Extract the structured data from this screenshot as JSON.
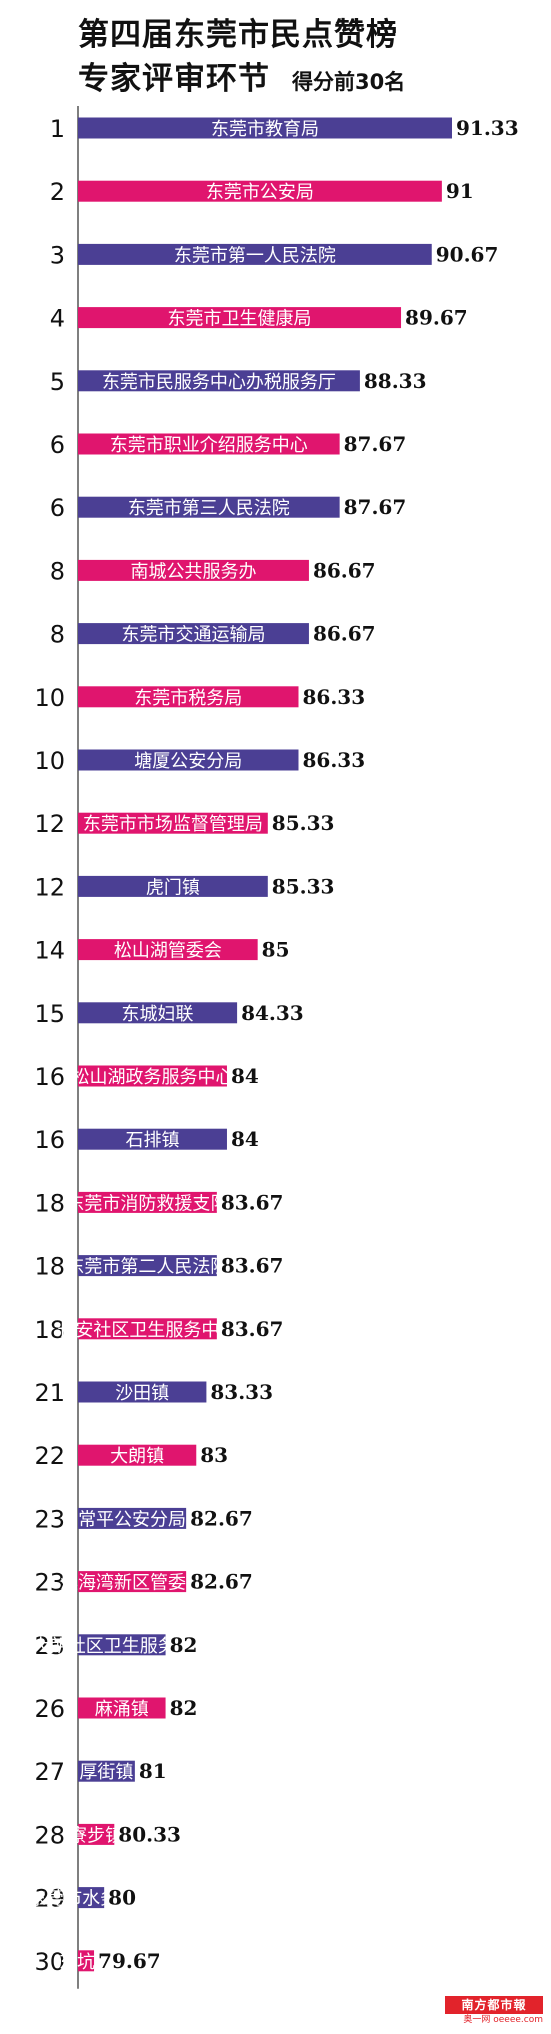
{
  "title": "第四届东莞市民点赞榜",
  "title_line2": "专家评审环节",
  "subtitle": "得分前30名",
  "colors": {
    "odd_bar": "#4b3f94",
    "even_bar": "#e0156e",
    "label_text": "#ffffff",
    "score_text": "#111111",
    "axis": "#555555"
  },
  "chart_data": {
    "type": "bar",
    "orientation": "horizontal",
    "ylim": [
      0,
      100
    ],
    "grid": false,
    "legend": "none",
    "ranks": [
      "1",
      "2",
      "3",
      "4",
      "5",
      "6",
      "6",
      "8",
      "8",
      "10",
      "10",
      "12",
      "12",
      "14",
      "15",
      "16",
      "16",
      "18",
      "18",
      "18",
      "21",
      "22",
      "23",
      "23",
      "25",
      "26",
      "27",
      "28",
      "29",
      "30"
    ],
    "categories": [
      "东莞市教育局",
      "东莞市公安局",
      "东莞市第一人民法院",
      "东莞市卫生健康局",
      "东莞市民服务中心办税服务厅",
      "东莞市职业介绍服务中心",
      "东莞市第三人民法院",
      "南城公共服务办",
      "东莞市交通运输局",
      "东莞市税务局",
      "塘厦公安分局",
      "东莞市市场监督管理局",
      "虎门镇",
      "松山湖管委会",
      "东城妇联",
      "松山湖政务服务中心",
      "石排镇",
      "东莞市消防救援支队",
      "东莞市第二人民法院",
      "长安社区卫生服务中心",
      "沙田镇",
      "大朗镇",
      "常平公安分局",
      "滨海湾新区管委会",
      "大朗社区卫生服务中心",
      "麻涌镇",
      "厚街镇",
      "寮步镇",
      "东莞市水务集团",
      "东坑镇"
    ],
    "values": [
      91.33,
      91,
      90.67,
      89.67,
      88.33,
      87.67,
      87.67,
      86.67,
      86.67,
      86.33,
      86.33,
      85.33,
      85.33,
      85,
      84.33,
      84,
      84,
      83.67,
      83.67,
      83.67,
      83.33,
      83,
      82.67,
      82.67,
      82,
      82,
      81,
      80.33,
      80,
      79.67
    ],
    "value_labels": [
      "91.33",
      "91",
      "90.67",
      "89.67",
      "88.33",
      "87.67",
      "87.67",
      "86.67",
      "86.67",
      "86.33",
      "86.33",
      "85.33",
      "85.33",
      "85",
      "84.33",
      "84",
      "84",
      "83.67",
      "83.67",
      "83.67",
      "83.33",
      "83",
      "82.67",
      "82.67",
      "82",
      "82",
      "81",
      "80.33",
      "80",
      "79.67"
    ]
  },
  "watermark": {
    "top": "南方都市報",
    "bottom": "奥一网 oeeee.com"
  }
}
